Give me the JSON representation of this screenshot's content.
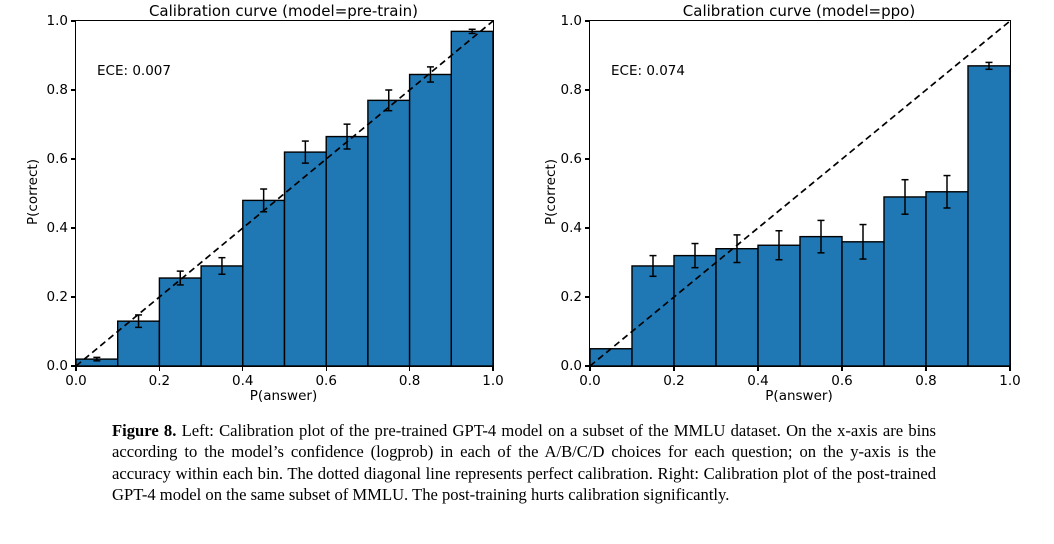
{
  "chart_data": [
    {
      "type": "bar",
      "title": "Calibration curve (model=pre-train)",
      "annotation": "ECE: 0.007",
      "xlabel": "P(answer)",
      "ylabel": "P(correct)",
      "xlim": [
        0,
        1
      ],
      "ylim": [
        0,
        1
      ],
      "xticks": [
        "0.0",
        "0.2",
        "0.4",
        "0.6",
        "0.8",
        "1.0"
      ],
      "yticks": [
        "0.0",
        "0.2",
        "0.4",
        "0.6",
        "0.8",
        "1.0"
      ],
      "bin_edges": [
        0.0,
        0.1,
        0.2,
        0.3,
        0.4,
        0.5,
        0.6,
        0.7,
        0.8,
        0.9,
        1.0
      ],
      "values": [
        0.02,
        0.13,
        0.255,
        0.29,
        0.48,
        0.62,
        0.665,
        0.77,
        0.845,
        0.97
      ],
      "errors": [
        0.005,
        0.018,
        0.02,
        0.024,
        0.033,
        0.032,
        0.036,
        0.03,
        0.022,
        0.006
      ],
      "diagonal": true,
      "grid": false,
      "legend": "none",
      "bar_color": "#1f77b4",
      "bar_edge_color": "#000000",
      "diagonal_color": "#000000"
    },
    {
      "type": "bar",
      "title": "Calibration curve (model=ppo)",
      "annotation": "ECE: 0.074",
      "xlabel": "P(answer)",
      "ylabel": "P(correct)",
      "xlim": [
        0,
        1
      ],
      "ylim": [
        0,
        1
      ],
      "xticks": [
        "0.0",
        "0.2",
        "0.4",
        "0.6",
        "0.8",
        "1.0"
      ],
      "yticks": [
        "0.0",
        "0.2",
        "0.4",
        "0.6",
        "0.8",
        "1.0"
      ],
      "bin_edges": [
        0.0,
        0.1,
        0.2,
        0.3,
        0.4,
        0.5,
        0.6,
        0.7,
        0.8,
        0.9,
        1.0
      ],
      "values": [
        0.05,
        0.29,
        0.32,
        0.34,
        0.35,
        0.375,
        0.36,
        0.49,
        0.505,
        0.87
      ],
      "errors": [
        0,
        0.03,
        0.035,
        0.04,
        0.042,
        0.047,
        0.05,
        0.05,
        0.047,
        0.01
      ],
      "diagonal": true,
      "grid": false,
      "legend": "none",
      "bar_color": "#1f77b4",
      "bar_edge_color": "#000000",
      "diagonal_color": "#000000"
    }
  ],
  "caption": {
    "label": "Figure 8.",
    "text": "Left: Calibration plot of the pre-trained GPT-4 model on a subset of the MMLU dataset. On the x-axis are bins according to the model’s confidence (logprob) in each of the A/B/C/D choices for each question; on the y-axis is the accuracy within each bin. The dotted diagonal line represents perfect calibration. Right: Calibration plot of the post-trained GPT-4 model on the same subset of MMLU. The post-training hurts calibration significantly."
  }
}
